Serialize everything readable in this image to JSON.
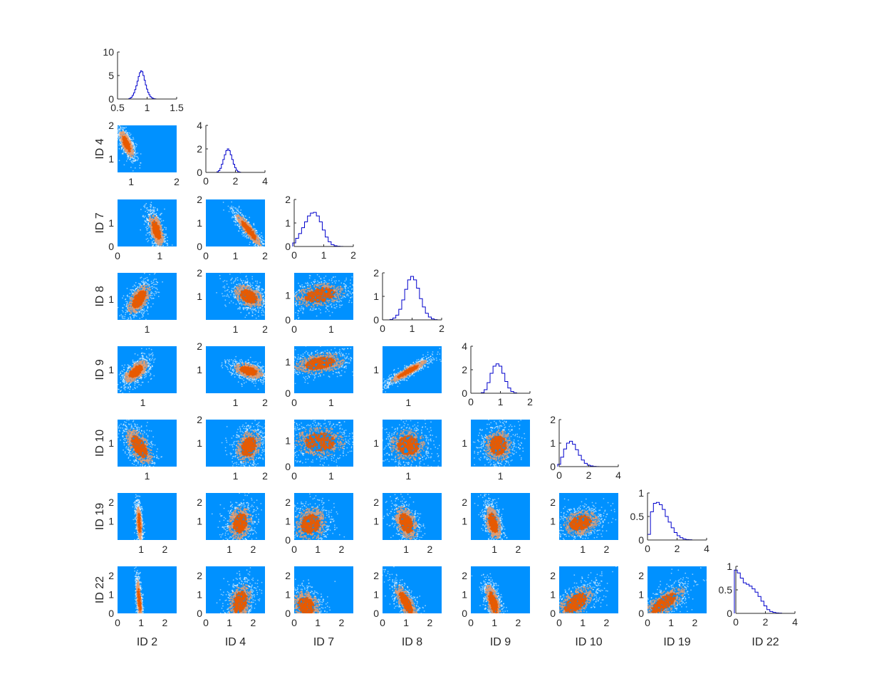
{
  "chart_data": {
    "type": "corner_plot",
    "parameters": [
      "ID 2",
      "ID 4",
      "ID 7",
      "ID 8",
      "ID 9",
      "ID 10",
      "ID 19",
      "ID 22"
    ],
    "colors": {
      "panel_bg": "#0091FF",
      "hist_line": "#0000CC",
      "density_mid": "#E8A070",
      "density_high": "#E85A00",
      "density_low": "#FFFFFF"
    },
    "diagonal": [
      {
        "param": "ID 2",
        "xlim": [
          0.5,
          1.5
        ],
        "ylim": [
          0,
          10
        ],
        "xticks": [
          "0.5",
          "1",
          "1.5"
        ],
        "yticks": [
          "0",
          "5",
          "10"
        ],
        "bins": [
          0.7,
          0.72,
          0.74,
          0.76,
          0.78,
          0.8,
          0.82,
          0.84,
          0.86,
          0.88,
          0.9,
          0.92,
          0.94,
          0.96,
          0.98,
          1.0,
          1.02,
          1.04,
          1.06,
          1.08,
          1.1,
          1.12,
          1.14
        ],
        "density": [
          0.1,
          0.2,
          0.4,
          0.8,
          1.3,
          2.0,
          2.8,
          3.8,
          4.8,
          5.6,
          6.0,
          5.8,
          5.0,
          4.0,
          3.0,
          2.1,
          1.4,
          0.9,
          0.5,
          0.3,
          0.15,
          0.08,
          0.03
        ]
      },
      {
        "param": "ID 4",
        "xlim": [
          0,
          4
        ],
        "ylim": [
          0,
          4
        ],
        "xticks": [
          "0",
          "2",
          "4"
        ],
        "yticks": [
          "0",
          "2",
          "4"
        ],
        "bins": [
          0.8,
          0.9,
          1.0,
          1.1,
          1.2,
          1.3,
          1.4,
          1.5,
          1.6,
          1.7,
          1.8,
          1.9,
          2.0,
          2.1,
          2.2,
          2.3
        ],
        "density": [
          0.05,
          0.15,
          0.35,
          0.7,
          1.1,
          1.5,
          1.85,
          2.0,
          1.85,
          1.5,
          1.1,
          0.7,
          0.4,
          0.18,
          0.07,
          0.02
        ]
      },
      {
        "param": "ID 7",
        "xlim": [
          0,
          2
        ],
        "ylim": [
          0,
          2
        ],
        "xticks": [
          "0",
          "1",
          "2"
        ],
        "yticks": [
          "0",
          "1",
          "2"
        ],
        "bins": [
          0.0,
          0.1,
          0.2,
          0.3,
          0.4,
          0.5,
          0.6,
          0.7,
          0.8,
          0.9,
          1.0,
          1.1,
          1.2,
          1.3,
          1.4,
          1.5,
          1.6
        ],
        "density": [
          0.15,
          0.35,
          0.55,
          0.8,
          1.05,
          1.3,
          1.42,
          1.45,
          1.3,
          1.05,
          0.7,
          0.4,
          0.2,
          0.08,
          0.03,
          0.01,
          0.005
        ]
      },
      {
        "param": "ID 8",
        "xlim": [
          0,
          2
        ],
        "ylim": [
          0,
          2
        ],
        "xticks": [
          "0",
          "1",
          "2"
        ],
        "yticks": [
          "0",
          "1",
          "2"
        ],
        "bins": [
          0.3,
          0.4,
          0.5,
          0.6,
          0.7,
          0.8,
          0.9,
          1.0,
          1.1,
          1.2,
          1.3,
          1.4,
          1.5,
          1.6,
          1.7,
          1.8
        ],
        "density": [
          0.02,
          0.08,
          0.2,
          0.45,
          0.85,
          1.3,
          1.7,
          1.85,
          1.7,
          1.35,
          0.9,
          0.55,
          0.28,
          0.12,
          0.04,
          0.01
        ]
      },
      {
        "param": "ID 9",
        "xlim": [
          0,
          2
        ],
        "ylim": [
          0,
          4
        ],
        "xticks": [
          "0",
          "1",
          "2"
        ],
        "yticks": [
          "0",
          "2",
          "4"
        ],
        "bins": [
          0.4,
          0.5,
          0.6,
          0.7,
          0.8,
          0.9,
          1.0,
          1.1,
          1.2,
          1.3,
          1.4,
          1.5
        ],
        "density": [
          0.05,
          0.3,
          0.9,
          1.7,
          2.3,
          2.5,
          2.3,
          1.7,
          1.0,
          0.45,
          0.15,
          0.04
        ]
      },
      {
        "param": "ID 10",
        "xlim": [
          0,
          4
        ],
        "ylim": [
          0,
          2
        ],
        "xticks": [
          "0",
          "2",
          "4"
        ],
        "yticks": [
          "0",
          "1",
          "2"
        ],
        "bins": [
          0.0,
          0.2,
          0.4,
          0.6,
          0.8,
          1.0,
          1.2,
          1.4,
          1.6,
          1.8,
          2.0,
          2.2,
          2.4,
          2.6
        ],
        "density": [
          0.1,
          0.4,
          0.75,
          1.0,
          1.08,
          0.95,
          0.72,
          0.48,
          0.28,
          0.14,
          0.06,
          0.03,
          0.01,
          0.005
        ]
      },
      {
        "param": "ID 19",
        "xlim": [
          0,
          4
        ],
        "ylim": [
          0,
          1
        ],
        "xticks": [
          "0",
          "2",
          "4"
        ],
        "yticks": [
          "0",
          "0.5",
          "1"
        ],
        "bins": [
          0.1,
          0.3,
          0.5,
          0.7,
          0.9,
          1.1,
          1.3,
          1.5,
          1.7,
          1.9,
          2.1,
          2.3,
          2.5,
          2.7,
          2.9
        ],
        "density": [
          0.12,
          0.6,
          0.78,
          0.8,
          0.75,
          0.65,
          0.5,
          0.38,
          0.26,
          0.16,
          0.09,
          0.05,
          0.02,
          0.01,
          0.005
        ]
      },
      {
        "param": "ID 22",
        "xlim": [
          0,
          4
        ],
        "ylim": [
          0,
          1
        ],
        "xticks": [
          "0",
          "2",
          "4"
        ],
        "yticks": [
          "0",
          "0.5",
          "1"
        ],
        "bins": [
          0.0,
          0.2,
          0.4,
          0.6,
          0.8,
          1.0,
          1.2,
          1.4,
          1.6,
          1.8,
          2.0,
          2.2,
          2.4,
          2.6,
          2.8,
          3.0
        ],
        "density": [
          0.92,
          0.86,
          0.75,
          0.65,
          0.62,
          0.58,
          0.52,
          0.45,
          0.36,
          0.26,
          0.16,
          0.08,
          0.04,
          0.02,
          0.01,
          0.005
        ]
      }
    ],
    "pairs": [
      {
        "x": "ID 2",
        "y": "ID 4",
        "xlim": [
          0.7,
          2.0
        ],
        "ylim": [
          0.6,
          2.0
        ],
        "xticks": [
          1,
          2
        ],
        "yticks": [
          1,
          2
        ],
        "mean": [
          0.9,
          1.45
        ],
        "sd": [
          0.08,
          0.2
        ],
        "corr": -0.7
      },
      {
        "x": "ID 2",
        "y": "ID 7",
        "xlim": [
          0,
          1.4
        ],
        "ylim": [
          0,
          2.0
        ],
        "xticks": [
          0,
          1
        ],
        "yticks": [
          0,
          1
        ],
        "mean": [
          0.92,
          0.7
        ],
        "sd": [
          0.09,
          0.35
        ],
        "corr": -0.55
      },
      {
        "x": "ID 4",
        "y": "ID 7",
        "xlim": [
          0,
          2.0
        ],
        "ylim": [
          0,
          2.0
        ],
        "xticks": [
          0,
          1,
          2
        ],
        "yticks": [
          0,
          1,
          2
        ],
        "mean": [
          1.45,
          0.7
        ],
        "sd": [
          0.22,
          0.35
        ],
        "corr": -0.9
      },
      {
        "x": "ID 2",
        "y": "ID 8",
        "xlim": [
          0.7,
          1.3
        ],
        "ylim": [
          0.3,
          1.9
        ],
        "xticks": [
          1
        ],
        "yticks": [
          1
        ],
        "mean": [
          0.92,
          1.0
        ],
        "sd": [
          0.06,
          0.25
        ],
        "corr": 0.55
      },
      {
        "x": "ID 4",
        "y": "ID 8",
        "xlim": [
          0,
          2.0
        ],
        "ylim": [
          0,
          2.0
        ],
        "xticks": [
          1,
          2
        ],
        "yticks": [
          1,
          2
        ],
        "mean": [
          1.45,
          1.0
        ],
        "sd": [
          0.25,
          0.25
        ],
        "corr": -0.4
      },
      {
        "x": "ID 7",
        "y": "ID 8",
        "xlim": [
          0,
          1.6
        ],
        "ylim": [
          0,
          1.9
        ],
        "xticks": [
          0,
          1
        ],
        "yticks": [
          0,
          1
        ],
        "mean": [
          0.7,
          1.0
        ],
        "sd": [
          0.35,
          0.25
        ],
        "corr": 0.3
      },
      {
        "x": "ID 2",
        "y": "ID 9",
        "xlim": [
          0.7,
          1.4
        ],
        "ylim": [
          0.3,
          1.7
        ],
        "xticks": [
          1
        ],
        "yticks": [
          1
        ],
        "mean": [
          0.92,
          0.95
        ],
        "sd": [
          0.07,
          0.17
        ],
        "corr": 0.6
      },
      {
        "x": "ID 4",
        "y": "ID 9",
        "xlim": [
          0,
          2.0
        ],
        "ylim": [
          0,
          2.0
        ],
        "xticks": [
          1,
          2
        ],
        "yticks": [
          1,
          2
        ],
        "mean": [
          1.45,
          0.95
        ],
        "sd": [
          0.25,
          0.17
        ],
        "corr": -0.4
      },
      {
        "x": "ID 7",
        "y": "ID 9",
        "xlim": [
          0,
          1.6
        ],
        "ylim": [
          0,
          1.5
        ],
        "xticks": [
          0,
          1
        ],
        "yticks": [
          0,
          1
        ],
        "mean": [
          0.7,
          0.95
        ],
        "sd": [
          0.35,
          0.17
        ],
        "corr": 0.3
      },
      {
        "x": "ID 8",
        "y": "ID 9",
        "xlim": [
          0.3,
          1.9
        ],
        "ylim": [
          0.3,
          1.7
        ],
        "xticks": [
          1
        ],
        "yticks": [
          1
        ],
        "mean": [
          1.0,
          0.95
        ],
        "sd": [
          0.25,
          0.17
        ],
        "corr": 0.92
      },
      {
        "x": "ID 2",
        "y": "ID 10",
        "xlim": [
          0.7,
          1.3
        ],
        "ylim": [
          0,
          2.0
        ],
        "xticks": [
          1
        ],
        "yticks": [
          1
        ],
        "mean": [
          0.92,
          0.85
        ],
        "sd": [
          0.07,
          0.4
        ],
        "corr": -0.6
      },
      {
        "x": "ID 4",
        "y": "ID 10",
        "xlim": [
          0,
          2.0
        ],
        "ylim": [
          0,
          2.0
        ],
        "xticks": [
          1,
          2
        ],
        "yticks": [
          1,
          2
        ],
        "mean": [
          1.45,
          0.85
        ],
        "sd": [
          0.22,
          0.35
        ],
        "corr": 0.2
      },
      {
        "x": "ID 7",
        "y": "ID 10",
        "xlim": [
          0,
          1.6
        ],
        "ylim": [
          0,
          1.8
        ],
        "xticks": [
          0,
          1
        ],
        "yticks": [
          0,
          1
        ],
        "mean": [
          0.7,
          0.95
        ],
        "sd": [
          0.35,
          0.3
        ],
        "corr": 0.0
      },
      {
        "x": "ID 8",
        "y": "ID 10",
        "xlim": [
          0.3,
          1.9
        ],
        "ylim": [
          0,
          2.0
        ],
        "xticks": [
          1
        ],
        "yticks": [
          1
        ],
        "mean": [
          1.0,
          0.9
        ],
        "sd": [
          0.25,
          0.35
        ],
        "corr": 0.0
      },
      {
        "x": "ID 9",
        "y": "ID 10",
        "xlim": [
          0.3,
          1.7
        ],
        "ylim": [
          0,
          2.0
        ],
        "xticks": [
          1
        ],
        "yticks": [
          1
        ],
        "mean": [
          0.95,
          0.9
        ],
        "sd": [
          0.17,
          0.35
        ],
        "corr": 0.0
      },
      {
        "x": "ID 2",
        "y": "ID 19",
        "xlim": [
          0,
          2.5
        ],
        "ylim": [
          0,
          2.5
        ],
        "xticks": [
          1,
          2
        ],
        "yticks": [
          1,
          2
        ],
        "mean": [
          0.92,
          0.9
        ],
        "sd": [
          0.06,
          0.45
        ],
        "corr": -0.4
      },
      {
        "x": "ID 4",
        "y": "ID 19",
        "xlim": [
          0,
          2.5
        ],
        "ylim": [
          0,
          2.5
        ],
        "xticks": [
          1,
          2
        ],
        "yticks": [
          1,
          2
        ],
        "mean": [
          1.45,
          0.9
        ],
        "sd": [
          0.25,
          0.45
        ],
        "corr": 0.15
      },
      {
        "x": "ID 7",
        "y": "ID 19",
        "xlim": [
          0,
          2.5
        ],
        "ylim": [
          0,
          2.5
        ],
        "xticks": [
          0,
          1,
          2
        ],
        "yticks": [
          0,
          1,
          2
        ],
        "mean": [
          0.7,
          0.85
        ],
        "sd": [
          0.35,
          0.45
        ],
        "corr": 0.1
      },
      {
        "x": "ID 8",
        "y": "ID 19",
        "xlim": [
          0,
          2.5
        ],
        "ylim": [
          0,
          2.5
        ],
        "xticks": [
          1,
          2
        ],
        "yticks": [
          1,
          2
        ],
        "mean": [
          1.0,
          0.9
        ],
        "sd": [
          0.25,
          0.45
        ],
        "corr": -0.4
      },
      {
        "x": "ID 9",
        "y": "ID 19",
        "xlim": [
          0,
          2.5
        ],
        "ylim": [
          0,
          2.5
        ],
        "xticks": [
          1,
          2
        ],
        "yticks": [
          1,
          2
        ],
        "mean": [
          0.95,
          0.9
        ],
        "sd": [
          0.17,
          0.45
        ],
        "corr": -0.4
      },
      {
        "x": "ID 10",
        "y": "ID 19",
        "xlim": [
          0,
          2.5
        ],
        "ylim": [
          0,
          2.5
        ],
        "xticks": [
          1,
          2
        ],
        "yticks": [
          1,
          2
        ],
        "mean": [
          0.9,
          0.9
        ],
        "sd": [
          0.4,
          0.35
        ],
        "corr": 0.25
      },
      {
        "x": "ID 2",
        "y": "ID 22",
        "xlim": [
          0,
          2.5
        ],
        "ylim": [
          0,
          2.5
        ],
        "xticks": [
          0,
          1,
          2
        ],
        "yticks": [
          0,
          1,
          2
        ],
        "mean": [
          0.92,
          0.7
        ],
        "sd": [
          0.06,
          0.55
        ],
        "corr": -0.6
      },
      {
        "x": "ID 4",
        "y": "ID 22",
        "xlim": [
          0,
          2.5
        ],
        "ylim": [
          0,
          2.5
        ],
        "xticks": [
          0,
          1,
          2
        ],
        "yticks": [
          0,
          1,
          2
        ],
        "mean": [
          1.45,
          0.6
        ],
        "sd": [
          0.25,
          0.5
        ],
        "corr": 0.3
      },
      {
        "x": "ID 7",
        "y": "ID 22",
        "xlim": [
          0,
          2.5
        ],
        "ylim": [
          0,
          2.5
        ],
        "xticks": [
          0,
          1,
          2
        ],
        "yticks": [
          0,
          1,
          2
        ],
        "mean": [
          0.5,
          0.4
        ],
        "sd": [
          0.3,
          0.4
        ],
        "corr": -0.2
      },
      {
        "x": "ID 8",
        "y": "ID 22",
        "xlim": [
          0,
          2.5
        ],
        "ylim": [
          0,
          2.5
        ],
        "xticks": [
          0,
          1,
          2
        ],
        "yticks": [
          0,
          1,
          2
        ],
        "mean": [
          1.0,
          0.55
        ],
        "sd": [
          0.25,
          0.5
        ],
        "corr": -0.75
      },
      {
        "x": "ID 9",
        "y": "ID 22",
        "xlim": [
          0,
          2.5
        ],
        "ylim": [
          0,
          2.5
        ],
        "xticks": [
          0,
          1,
          2
        ],
        "yticks": [
          0,
          1,
          2
        ],
        "mean": [
          0.95,
          0.55
        ],
        "sd": [
          0.17,
          0.5
        ],
        "corr": -0.6
      },
      {
        "x": "ID 10",
        "y": "ID 22",
        "xlim": [
          0,
          2.5
        ],
        "ylim": [
          0,
          2.5
        ],
        "xticks": [
          0,
          1,
          2
        ],
        "yticks": [
          0,
          1,
          2
        ],
        "mean": [
          0.7,
          0.55
        ],
        "sd": [
          0.4,
          0.45
        ],
        "corr": 0.55
      },
      {
        "x": "ID 19",
        "y": "ID 22",
        "xlim": [
          0,
          2.5
        ],
        "ylim": [
          0,
          2.5
        ],
        "xticks": [
          0,
          1,
          2
        ],
        "yticks": [
          0,
          1,
          2
        ],
        "mean": [
          0.7,
          0.55
        ],
        "sd": [
          0.45,
          0.45
        ],
        "corr": 0.7
      }
    ]
  }
}
